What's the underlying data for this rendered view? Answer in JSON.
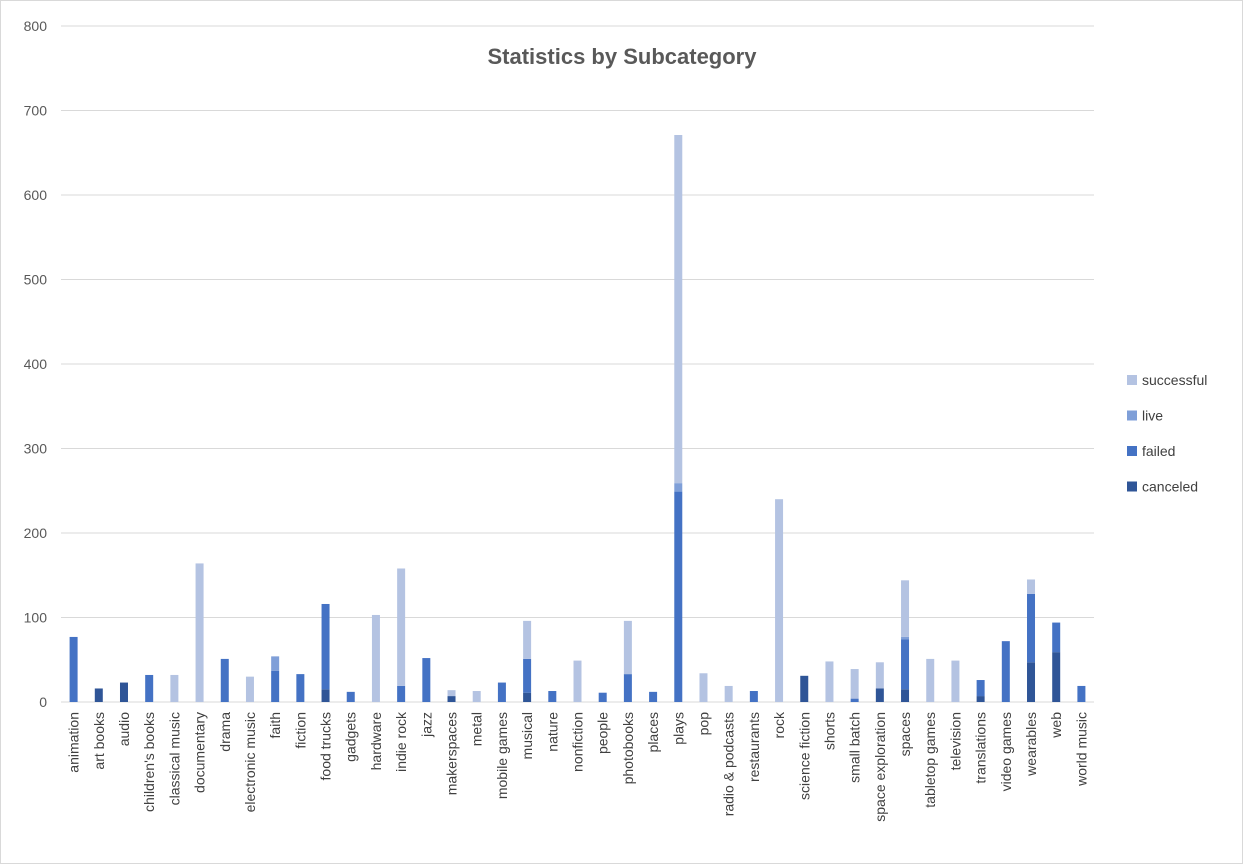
{
  "chart_data": {
    "type": "bar",
    "stacked": true,
    "title": "Statistics by Subcategory",
    "xlabel": "",
    "ylabel": "",
    "ylim": [
      0,
      800
    ],
    "yticks": [
      0,
      100,
      200,
      300,
      400,
      500,
      600,
      700,
      800
    ],
    "grid": true,
    "legend_position": "right",
    "categories": [
      "animation",
      "art books",
      "audio",
      "children's books",
      "classical music",
      "documentary",
      "drama",
      "electronic music",
      "faith",
      "fiction",
      "food trucks",
      "gadgets",
      "hardware",
      "indie rock",
      "jazz",
      "makerspaces",
      "metal",
      "mobile games",
      "musical",
      "nature",
      "nonfiction",
      "people",
      "photobooks",
      "places",
      "plays",
      "pop",
      "radio & podcasts",
      "restaurants",
      "rock",
      "science fiction",
      "shorts",
      "small batch",
      "space exploration",
      "spaces",
      "tabletop games",
      "television",
      "translations",
      "video games",
      "wearables",
      "web",
      "world music"
    ],
    "series": [
      {
        "name": "canceled",
        "color": "#2f5597",
        "values": [
          0,
          16,
          23,
          0,
          0,
          0,
          0,
          0,
          0,
          0,
          15,
          0,
          0,
          0,
          0,
          7,
          0,
          0,
          11,
          0,
          0,
          0,
          0,
          0,
          0,
          0,
          0,
          0,
          0,
          31,
          0,
          0,
          16,
          15,
          0,
          0,
          7,
          0,
          47,
          59,
          0
        ]
      },
      {
        "name": "failed",
        "color": "#4472c4",
        "values": [
          77,
          0,
          0,
          32,
          0,
          0,
          51,
          0,
          37,
          33,
          101,
          12,
          0,
          19,
          52,
          0,
          0,
          23,
          40,
          13,
          0,
          11,
          33,
          12,
          249,
          0,
          0,
          13,
          0,
          0,
          0,
          4,
          0,
          59,
          0,
          0,
          19,
          72,
          81,
          35,
          19
        ]
      },
      {
        "name": "live",
        "color": "#7f9fd8",
        "values": [
          0,
          0,
          0,
          0,
          0,
          0,
          0,
          0,
          17,
          0,
          0,
          0,
          0,
          0,
          0,
          0,
          0,
          0,
          0,
          0,
          0,
          0,
          0,
          0,
          10,
          0,
          0,
          0,
          0,
          0,
          0,
          0,
          0,
          3,
          0,
          0,
          0,
          0,
          0,
          0,
          0
        ]
      },
      {
        "name": "successful",
        "color": "#b4c3e2",
        "values": [
          0,
          0,
          0,
          0,
          32,
          164,
          0,
          30,
          0,
          0,
          0,
          0,
          103,
          139,
          0,
          7,
          13,
          0,
          45,
          0,
          49,
          0,
          63,
          0,
          412,
          34,
          19,
          0,
          240,
          0,
          48,
          35,
          31,
          67,
          51,
          49,
          0,
          0,
          17,
          0,
          0
        ]
      }
    ]
  }
}
